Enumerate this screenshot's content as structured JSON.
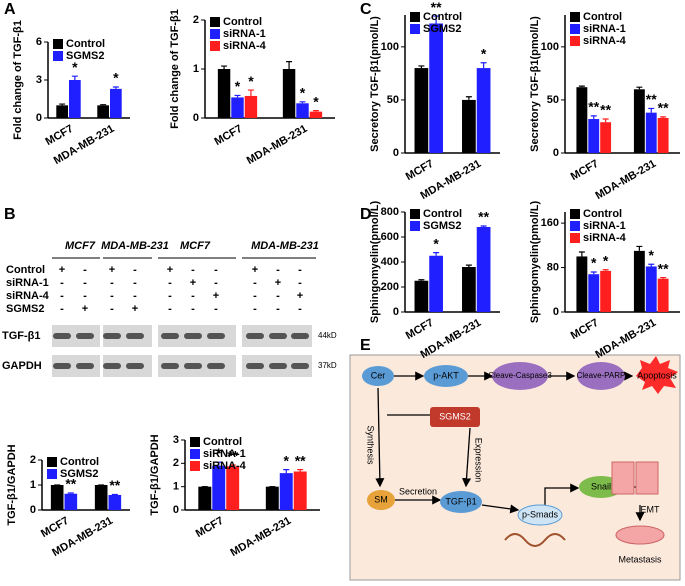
{
  "panels": [
    "A",
    "B",
    "C",
    "D",
    "E"
  ],
  "chart_data": [
    {
      "type": "bar",
      "y_label": "Fold change of TGF-β1",
      "categories": [
        "MCF7",
        "MDA-MB-231"
      ],
      "ylim": [
        0,
        6
      ],
      "yticks": [
        0,
        3,
        6
      ],
      "series": [
        {
          "name": "Control",
          "color": "#000000",
          "values": [
            1,
            1
          ],
          "errors": [
            0.1,
            0.05
          ]
        },
        {
          "name": "SGMS2",
          "color": "#1f1fff",
          "values": [
            3.0,
            2.3
          ],
          "errors": [
            0.3,
            0.15
          ],
          "significance": [
            "*",
            "*"
          ]
        }
      ]
    },
    {
      "type": "bar",
      "y_label": "Fold change of TGF-β1",
      "categories": [
        "MCF7",
        "MDA-MB-231"
      ],
      "ylim": [
        0,
        2
      ],
      "yticks": [
        0,
        1,
        2
      ],
      "series": [
        {
          "name": "Control",
          "color": "#000000",
          "values": [
            1,
            1
          ],
          "errors": [
            0.06,
            0.15
          ]
        },
        {
          "name": "siRNA-1",
          "color": "#1f1fff",
          "values": [
            0.42,
            0.3
          ],
          "errors": [
            0.04,
            0.03
          ],
          "significance": [
            "*",
            "*"
          ]
        },
        {
          "name": "siRNA-4",
          "color": "#ff1f1f",
          "values": [
            0.45,
            0.13
          ],
          "errors": [
            0.12,
            0.02
          ],
          "significance": [
            "*",
            "*"
          ]
        }
      ]
    },
    {
      "type": "bar",
      "y_label": "Secretory TGF-β1(pmol/L)",
      "categories": [
        "MCF7",
        "MDA-MB-231"
      ],
      "ylim": [
        0,
        130
      ],
      "yticks": [
        0,
        50,
        100
      ],
      "series": [
        {
          "name": "Control",
          "color": "#000000",
          "values": [
            80,
            50
          ],
          "errors": [
            2,
            3
          ]
        },
        {
          "name": "SGMS2",
          "color": "#1f1fff",
          "values": [
            122,
            80
          ],
          "errors": [
            7,
            5
          ],
          "significance": [
            "**",
            "*"
          ]
        }
      ]
    },
    {
      "type": "bar",
      "y_label": "Secretory TGF-β1(pmol/L)",
      "categories": [
        "MCF7",
        "MDA-MB-231"
      ],
      "ylim": [
        0,
        130
      ],
      "yticks": [
        0,
        50,
        100
      ],
      "series": [
        {
          "name": "Control",
          "color": "#000000",
          "values": [
            62,
            60
          ],
          "errors": [
            1,
            2
          ]
        },
        {
          "name": "siRNA-1",
          "color": "#1f1fff",
          "values": [
            32,
            38
          ],
          "errors": [
            3,
            4
          ],
          "significance": [
            "**",
            "**"
          ]
        },
        {
          "name": "siRNA-4",
          "color": "#ff1f1f",
          "values": [
            29,
            33
          ],
          "errors": [
            3,
            1
          ],
          "significance": [
            "**",
            "**"
          ]
        }
      ]
    },
    {
      "type": "bar",
      "y_label": "Sphingomyelin(pmol/L)",
      "categories": [
        "MCF7",
        "MDA-MB-231"
      ],
      "ylim": [
        0,
        800
      ],
      "yticks": [
        0,
        200,
        400,
        600,
        800
      ],
      "series": [
        {
          "name": "Control",
          "color": "#000000",
          "values": [
            250,
            360
          ],
          "errors": [
            8,
            15
          ]
        },
        {
          "name": "SGMS2",
          "color": "#1f1fff",
          "values": [
            450,
            680
          ],
          "errors": [
            25,
            8
          ],
          "significance": [
            "*",
            "**"
          ]
        }
      ]
    },
    {
      "type": "bar",
      "y_label": "Sphingomyelin(pmol/L)",
      "categories": [
        "MCF7",
        "MDA-MB-231"
      ],
      "ylim": [
        0,
        180
      ],
      "yticks": [
        0,
        80,
        160
      ],
      "series": [
        {
          "name": "Control",
          "color": "#000000",
          "values": [
            100,
            110
          ],
          "errors": [
            8,
            8
          ]
        },
        {
          "name": "siRNA-1",
          "color": "#1f1fff",
          "values": [
            68,
            82
          ],
          "errors": [
            4,
            4
          ],
          "significance": [
            "*",
            "*"
          ]
        },
        {
          "name": "siRNA-4",
          "color": "#ff1f1f",
          "values": [
            74,
            60
          ],
          "errors": [
            2,
            2
          ],
          "significance": [
            "*",
            "**"
          ]
        }
      ]
    },
    {
      "type": "bar",
      "y_label": "TGF-β1/GAPDH",
      "categories": [
        "MCF7",
        "MDA-MB-231"
      ],
      "ylim": [
        0,
        2
      ],
      "yticks": [
        0,
        1,
        2
      ],
      "series": [
        {
          "name": "Control",
          "color": "#000000",
          "values": [
            1,
            1
          ],
          "errors": [
            0,
            0
          ]
        },
        {
          "name": "SGMS2",
          "color": "#1f1fff",
          "values": [
            0.65,
            0.6
          ],
          "errors": [
            0.03,
            0.02
          ],
          "significance": [
            "**",
            "**"
          ]
        }
      ]
    },
    {
      "type": "bar",
      "y_label": "TGF-β1/GAPDH",
      "categories": [
        "MCF7",
        "MDA-MB-231"
      ],
      "ylim": [
        0,
        3
      ],
      "yticks": [
        0,
        1,
        2,
        3
      ],
      "series": [
        {
          "name": "Control",
          "color": "#000000",
          "values": [
            1,
            1
          ],
          "errors": [
            0,
            0
          ]
        },
        {
          "name": "siRNA-1",
          "color": "#1f1fff",
          "values": [
            1.9,
            1.58
          ],
          "errors": [
            0.15,
            0.15
          ],
          "significance": [
            "*",
            "*"
          ]
        },
        {
          "name": "siRNA-4",
          "color": "#ff1f1f",
          "values": [
            1.87,
            1.65
          ],
          "errors": [
            0.06,
            0.08
          ],
          "significance": [
            "**",
            "**"
          ]
        }
      ]
    }
  ],
  "blot": {
    "groups": [
      "MCF7",
      "MDA-MB-231",
      "MCF7",
      "MDA-MB-231"
    ],
    "rows": [
      {
        "label": "Control",
        "marks": [
          "+",
          "-",
          "+",
          "-",
          "+",
          "-",
          "-",
          "+",
          "-",
          "-"
        ]
      },
      {
        "label": "siRNA-1",
        "marks": [
          "-",
          "-",
          "-",
          "-",
          "-",
          "+",
          "-",
          "-",
          "+",
          "-"
        ]
      },
      {
        "label": "siRNA-4",
        "marks": [
          "-",
          "-",
          "-",
          "-",
          "-",
          "-",
          "+",
          "-",
          "-",
          "+"
        ]
      },
      {
        "label": "SGMS2",
        "marks": [
          "-",
          "+",
          "-",
          "+",
          "-",
          "-",
          "-",
          "-",
          "-",
          "-"
        ]
      }
    ],
    "bands": [
      {
        "label": "TGF-β1",
        "size": "44kD"
      },
      {
        "label": "GAPDH",
        "size": "37kD"
      }
    ]
  },
  "diagram": {
    "nodes": [
      "Cer",
      "p-AKT",
      "Cleave-Caspase3",
      "Cleave-PARP",
      "Apoptosis",
      "SGMS2",
      "SM",
      "TGF-β1",
      "p-Smads",
      "Snail",
      "EMT",
      "Metastasis"
    ],
    "edges": [
      "Synthesis",
      "Expression",
      "Secretion"
    ]
  }
}
